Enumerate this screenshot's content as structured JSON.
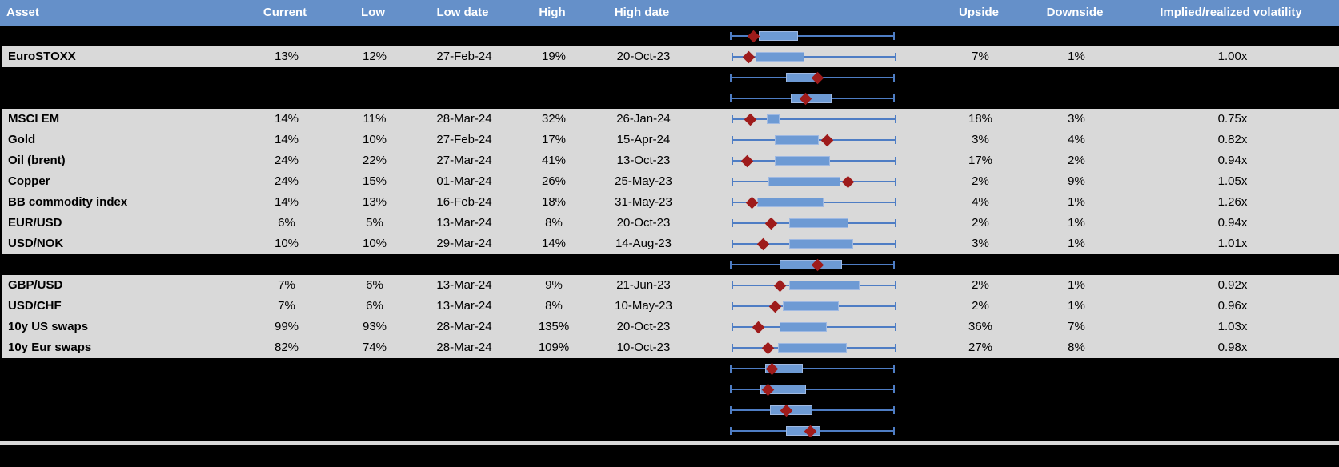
{
  "colors": {
    "header_blue": "#6590C9",
    "row_gray": "#D9D9D9",
    "hidden_black": "#000000",
    "box_fill": "#6D9AD4",
    "box_border": "#9FB9E2",
    "whisker_blue": "#4E7DC4",
    "diamond_red": "#9E1B1B",
    "header_text": "#FFFFFF"
  },
  "header": {
    "columns": [
      {
        "id": "asset",
        "label": "Asset"
      },
      {
        "id": "current",
        "label": "Current"
      },
      {
        "id": "low",
        "label": "Low"
      },
      {
        "id": "low_date",
        "label": "Low date"
      },
      {
        "id": "high",
        "label": "High"
      },
      {
        "id": "high_date",
        "label": "High date"
      },
      {
        "id": "range_plot",
        "label": ""
      },
      {
        "id": "upside",
        "label": "Upside"
      },
      {
        "id": "downside",
        "label": "Downside"
      },
      {
        "id": "impl_real",
        "label": "Implied/realized volatility"
      }
    ]
  },
  "chart_data": {
    "type": "boxplot",
    "title": "",
    "xlabel": "",
    "ylabel": "",
    "legend": "none",
    "axis_note": "box_start/box_end/marker are percent positions (0-100) of the whisker span; whiskers run full span on every row; red diamond marks current level",
    "axis_range": [
      0,
      100
    ],
    "rows": [
      {
        "kind": "hidden",
        "box_start": 17,
        "box_end": 41,
        "marker": 14
      },
      {
        "kind": "data",
        "asset": "EuroSTOXX",
        "current": "13%",
        "low": "12%",
        "low_date": "27-Feb-24",
        "high": "19%",
        "high_date": "20-Oct-23",
        "upside": "7%",
        "downside": "1%",
        "impl_real": "1.00x",
        "box_start": 14,
        "box_end": 44,
        "marker": 10
      },
      {
        "kind": "hidden",
        "box_start": 34,
        "box_end": 52,
        "marker": 53
      },
      {
        "kind": "hidden",
        "box_start": 37,
        "box_end": 62,
        "marker": 46
      },
      {
        "kind": "data",
        "asset": "MSCI EM",
        "current": "14%",
        "low": "11%",
        "low_date": "28-Mar-24",
        "high": "32%",
        "high_date": "26-Jan-24",
        "upside": "18%",
        "downside": "3%",
        "impl_real": "0.75x",
        "box_start": 21,
        "box_end": 29,
        "marker": 11
      },
      {
        "kind": "data",
        "asset": "Gold",
        "current": "14%",
        "low": "10%",
        "low_date": "27-Feb-24",
        "high": "17%",
        "high_date": "15-Apr-24",
        "upside": "3%",
        "downside": "4%",
        "impl_real": "0.82x",
        "box_start": 26,
        "box_end": 53,
        "marker": 58
      },
      {
        "kind": "data",
        "asset": "Oil (brent)",
        "current": "24%",
        "low": "22%",
        "low_date": "27-Mar-24",
        "high": "41%",
        "high_date": "13-Oct-23",
        "upside": "17%",
        "downside": "2%",
        "impl_real": "0.94x",
        "box_start": 26,
        "box_end": 60,
        "marker": 9
      },
      {
        "kind": "data",
        "asset": "Copper",
        "current": "24%",
        "low": "15%",
        "low_date": "01-Mar-24",
        "high": "26%",
        "high_date": "25-May-23",
        "upside": "2%",
        "downside": "9%",
        "impl_real": "1.05x",
        "box_start": 22,
        "box_end": 66,
        "marker": 71
      },
      {
        "kind": "data",
        "asset": "BB commodity index",
        "current": "14%",
        "low": "13%",
        "low_date": "16-Feb-24",
        "high": "18%",
        "high_date": "31-May-23",
        "upside": "4%",
        "downside": "1%",
        "impl_real": "1.26x",
        "box_start": 15,
        "box_end": 56,
        "marker": 12
      },
      {
        "kind": "data",
        "asset": "EUR/USD",
        "current": "6%",
        "low": "5%",
        "low_date": "13-Mar-24",
        "high": "8%",
        "high_date": "20-Oct-23",
        "upside": "2%",
        "downside": "1%",
        "impl_real": "0.94x",
        "box_start": 35,
        "box_end": 71,
        "marker": 24
      },
      {
        "kind": "data",
        "asset": "USD/NOK",
        "current": "10%",
        "low": "10%",
        "low_date": "29-Mar-24",
        "high": "14%",
        "high_date": "14-Aug-23",
        "upside": "3%",
        "downside": "1%",
        "impl_real": "1.01x",
        "box_start": 35,
        "box_end": 74,
        "marker": 19
      },
      {
        "kind": "hidden",
        "box_start": 30,
        "box_end": 68,
        "marker": 53
      },
      {
        "kind": "data",
        "asset": "GBP/USD",
        "current": "7%",
        "low": "6%",
        "low_date": "13-Mar-24",
        "high": "9%",
        "high_date": "21-Jun-23",
        "upside": "2%",
        "downside": "1%",
        "impl_real": "0.92x",
        "box_start": 35,
        "box_end": 78,
        "marker": 29
      },
      {
        "kind": "data",
        "asset": "USD/CHF",
        "current": "7%",
        "low": "6%",
        "low_date": "13-Mar-24",
        "high": "8%",
        "high_date": "10-May-23",
        "upside": "2%",
        "downside": "1%",
        "impl_real": "0.96x",
        "box_start": 31,
        "box_end": 65,
        "marker": 26
      },
      {
        "kind": "data",
        "asset": "10y US swaps",
        "current": "99%",
        "low": "93%",
        "low_date": "28-Mar-24",
        "high": "135%",
        "high_date": "20-Oct-23",
        "upside": "36%",
        "downside": "7%",
        "impl_real": "1.03x",
        "box_start": 29,
        "box_end": 58,
        "marker": 16
      },
      {
        "kind": "data",
        "asset": "10y Eur swaps",
        "current": "82%",
        "low": "74%",
        "low_date": "28-Mar-24",
        "high": "109%",
        "high_date": "10-Oct-23",
        "upside": "27%",
        "downside": "8%",
        "impl_real": "0.98x",
        "box_start": 28,
        "box_end": 70,
        "marker": 22
      },
      {
        "kind": "hidden",
        "box_start": 21,
        "box_end": 44,
        "marker": 25
      },
      {
        "kind": "hidden",
        "box_start": 18,
        "box_end": 46,
        "marker": 23
      },
      {
        "kind": "hidden",
        "box_start": 24,
        "box_end": 50,
        "marker": 34
      },
      {
        "kind": "hidden",
        "box_start": 34,
        "box_end": 55,
        "marker": 49
      }
    ]
  }
}
